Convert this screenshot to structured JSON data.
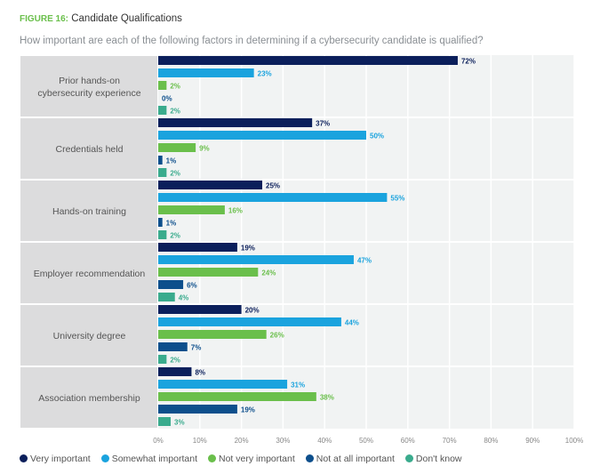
{
  "figure_label": "FIGURE 16:",
  "title": "Candidate Qualifications",
  "subtitle": "How important are each of the following factors in determining if a cybersecurity candidate is qualified?",
  "chart_data": {
    "type": "bar",
    "orientation": "horizontal",
    "categories": [
      "Prior hands-on cybersecurity experience",
      "Credentials held",
      "Hands-on training",
      "Employer recommendation",
      "University degree",
      "Association membership"
    ],
    "category_lines": [
      [
        "Prior hands-on",
        "cybersecurity experience"
      ],
      [
        "Credentials held"
      ],
      [
        "Hands-on training"
      ],
      [
        "Employer recommendation"
      ],
      [
        "University degree"
      ],
      [
        "Association membership"
      ]
    ],
    "series": [
      {
        "name": "Very important",
        "color": "#0b1f5b",
        "values": [
          72,
          37,
          25,
          19,
          20,
          8
        ]
      },
      {
        "name": "Somewhat important",
        "color": "#1aa3de",
        "values": [
          23,
          50,
          55,
          47,
          44,
          31
        ]
      },
      {
        "name": "Not very important",
        "color": "#6abf4b",
        "values": [
          2,
          9,
          16,
          24,
          26,
          38
        ]
      },
      {
        "name": "Not at all important",
        "color": "#0d4f8c",
        "values": [
          0,
          1,
          1,
          6,
          7,
          19
        ]
      },
      {
        "name": "Don't know",
        "color": "#3aab8d",
        "values": [
          2,
          2,
          2,
          4,
          2,
          3
        ]
      }
    ],
    "xlim": [
      0,
      100
    ],
    "x_ticks": [
      "0%",
      "10%",
      "20%",
      "30%",
      "40%",
      "50%",
      "60%",
      "70%",
      "80%",
      "90%",
      "100%"
    ],
    "value_suffix": "%",
    "grid": true,
    "legend_position": "bottom-left"
  }
}
